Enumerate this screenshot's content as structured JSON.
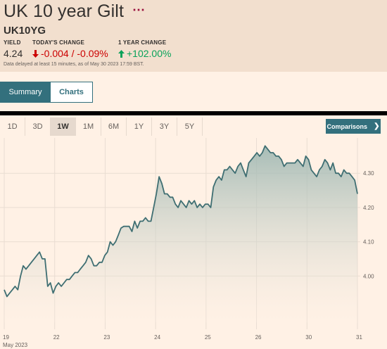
{
  "header": {
    "title": "UK 10 year Gilt",
    "more_icon": "ellipsis-icon",
    "symbol": "UK10YG",
    "yield_label": "YIELD",
    "yield_value": "4.24",
    "today_label": "TODAY'S CHANGE",
    "today_value": "-0.004 / -0.09%",
    "year_label": "1 YEAR CHANGE",
    "year_value": "+102.00%",
    "delay_text": "Data delayed at least 15 minutes, as of May 30 2023 17:59 BST.",
    "colors": {
      "down": "#cc0000",
      "up": "#09a25a",
      "accent": "#33707d"
    }
  },
  "tabs": [
    {
      "label": "Summary",
      "active": true
    },
    {
      "label": "Charts",
      "active": false
    }
  ],
  "ranges": [
    {
      "label": "1D",
      "active": false
    },
    {
      "label": "3D",
      "active": false
    },
    {
      "label": "1W",
      "active": true
    },
    {
      "label": "1M",
      "active": false
    },
    {
      "label": "6M",
      "active": false
    },
    {
      "label": "1Y",
      "active": false
    },
    {
      "label": "3Y",
      "active": false
    },
    {
      "label": "5Y",
      "active": false
    }
  ],
  "comparisons_label": "Comparisons",
  "chart_data": {
    "type": "area",
    "y_axis_position": "right",
    "grid": true,
    "ylim": [
      3.865,
      4.395
    ],
    "y_ticks": [
      4.0,
      4.1,
      4.2,
      4.3
    ],
    "y_tick_labels": [
      "4.00",
      "4.10",
      "4.20",
      "4.30"
    ],
    "x_tick_labels": [
      "19",
      "22",
      "23",
      "24",
      "25",
      "26",
      "30",
      "31"
    ],
    "x_sublabel": "May 2023",
    "line_color": "#3e6e72",
    "series": [
      {
        "values": [
          3.96,
          3.94,
          3.95,
          3.96,
          3.97,
          3.96,
          4.0,
          4.03,
          4.02,
          4.03,
          4.04,
          4.05,
          4.06,
          4.07,
          4.05,
          4.05,
          3.97,
          3.98,
          3.95,
          3.97,
          3.98,
          3.97,
          3.98,
          3.99,
          3.99,
          4.0,
          4.01,
          4.01,
          4.02,
          4.03,
          4.04,
          4.06,
          4.05,
          4.03,
          4.03,
          4.04,
          4.04,
          4.06,
          4.07,
          4.1,
          4.09,
          4.1,
          4.12,
          4.14,
          4.145,
          4.145,
          4.145,
          4.13,
          4.16,
          4.14,
          4.16,
          4.16,
          4.17,
          4.16,
          4.16,
          4.2,
          4.24,
          4.29,
          4.27,
          4.24,
          4.24,
          4.23,
          4.23,
          4.21,
          4.2,
          4.22,
          4.21,
          4.2,
          4.22,
          4.21,
          4.22,
          4.2,
          4.21,
          4.2,
          4.21,
          4.21,
          4.2,
          4.26,
          4.28,
          4.29,
          4.28,
          4.31,
          4.31,
          4.32,
          4.31,
          4.3,
          4.32,
          4.33,
          4.31,
          4.29,
          4.33,
          4.34,
          4.35,
          4.36,
          4.35,
          4.36,
          4.38,
          4.37,
          4.36,
          4.36,
          4.35,
          4.35,
          4.34,
          4.32,
          4.33,
          4.33,
          4.33,
          4.33,
          4.34,
          4.33,
          4.32,
          4.35,
          4.34,
          4.31,
          4.3,
          4.29,
          4.31,
          4.32,
          4.34,
          4.33,
          4.31,
          4.33,
          4.3,
          4.3,
          4.29,
          4.31,
          4.3,
          4.3,
          4.29,
          4.28,
          4.24
        ]
      }
    ]
  }
}
